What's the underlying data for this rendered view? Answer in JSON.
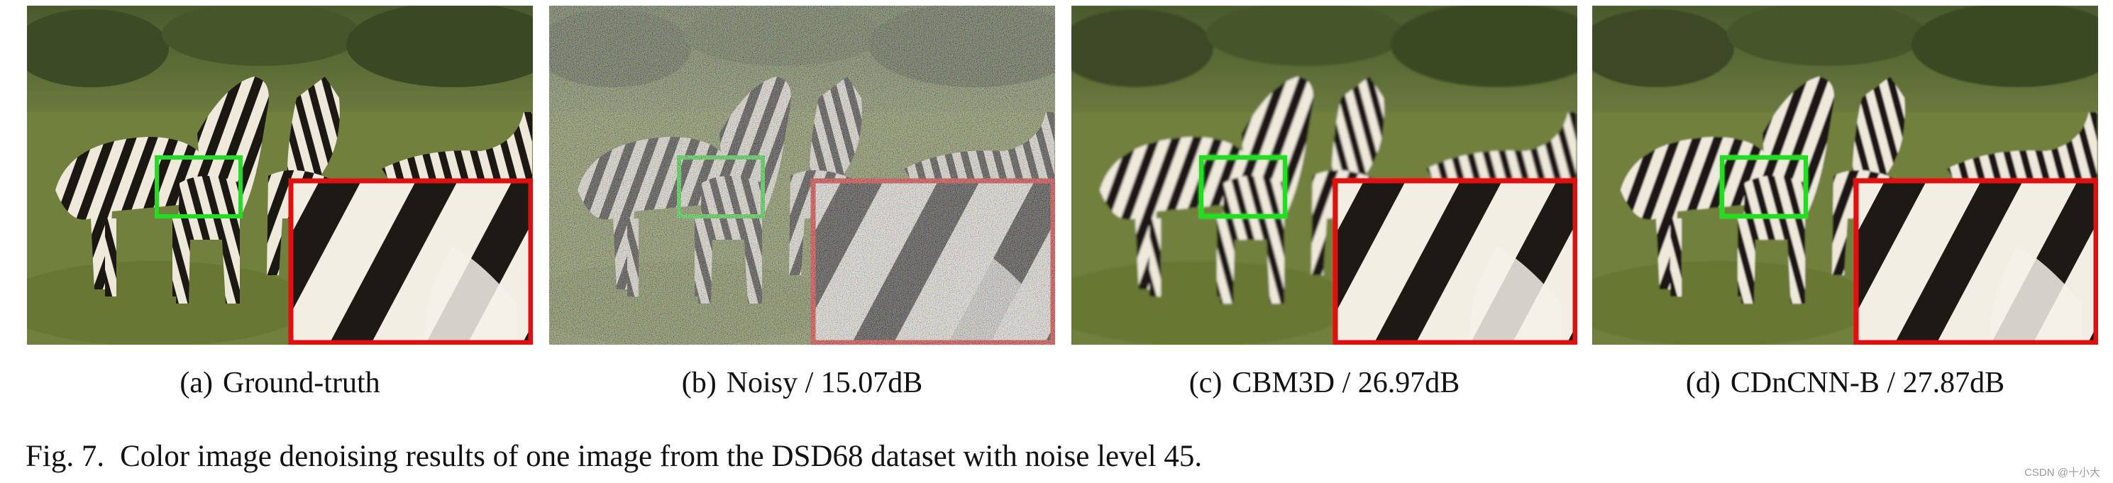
{
  "panels": [
    {
      "label": "(a)",
      "title": "Ground-truth",
      "variant": "clean"
    },
    {
      "label": "(b)",
      "title": "Noisy / 15.07dB",
      "variant": "noisy"
    },
    {
      "label": "(c)",
      "title": "CBM3D / 26.97dB",
      "variant": "smooth"
    },
    {
      "label": "(d)",
      "title": "CDnCNN-B / 27.87dB",
      "variant": "smooth"
    }
  ],
  "caption": {
    "number": "Fig. 7.",
    "text": "Color image denoising results of one image from the DSD68 dataset with noise level 45."
  },
  "watermark": "CSDN @十小大",
  "colors": {
    "roi_box": "#22dd22",
    "zoom_box": "#e01010",
    "grass": "#6f7f3c",
    "background_trees": "#3e4a26"
  }
}
